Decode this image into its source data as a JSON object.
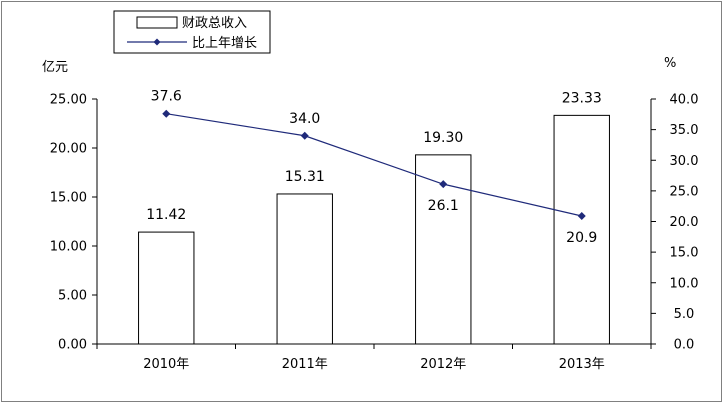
{
  "chart_data": {
    "type": "bar",
    "categories": [
      "2010年",
      "2011年",
      "2012年",
      "2013年"
    ],
    "series": [
      {
        "name": "财政总收入",
        "type": "bar",
        "axis": "left",
        "values": [
          11.42,
          15.31,
          19.3,
          23.33
        ],
        "labels": [
          "11.42",
          "15.31",
          "19.30",
          "23.33"
        ]
      },
      {
        "name": "比上年增长",
        "type": "line",
        "axis": "right",
        "values": [
          37.6,
          34.0,
          26.1,
          20.9
        ],
        "labels": [
          "37.6",
          "34.0",
          "26.1",
          "20.9"
        ]
      }
    ],
    "ylabel_left": "亿元",
    "ylabel_right": "%",
    "ylim_left": [
      0,
      25
    ],
    "ylim_right": [
      0,
      40
    ],
    "yticks_left": [
      "0.00",
      "5.00",
      "10.00",
      "15.00",
      "20.00",
      "25.00"
    ],
    "yticks_right": [
      "0.0",
      "5.0",
      "10.0",
      "15.0",
      "20.0",
      "25.0",
      "30.0",
      "35.0",
      "40.0"
    ],
    "legend_position": "top-left",
    "grid": false,
    "colors": {
      "bar_fill": "#ffffff",
      "bar_stroke": "#000000",
      "line": "#1f2a7a",
      "marker": "#1f2a7a"
    }
  }
}
